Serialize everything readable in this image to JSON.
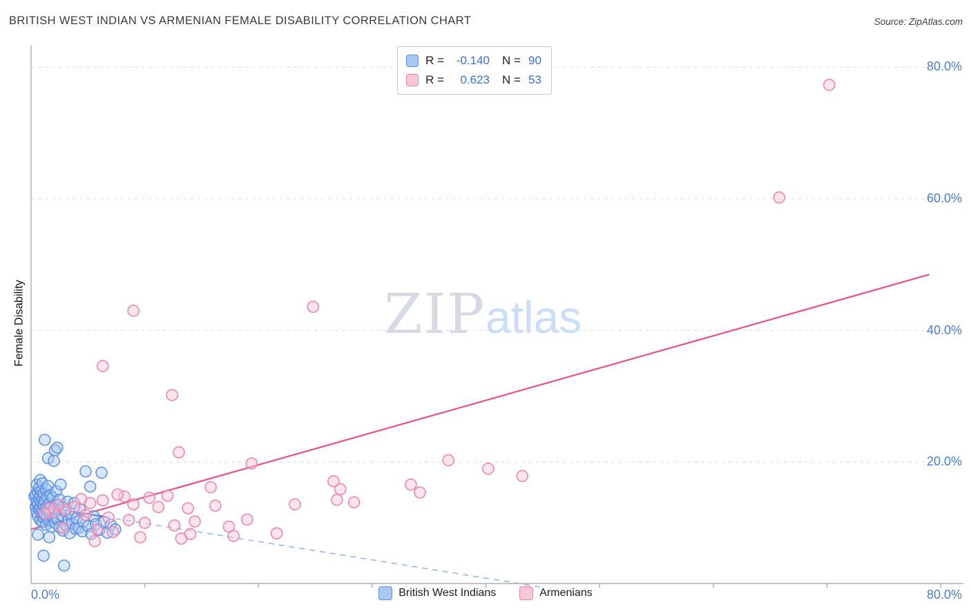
{
  "header": {
    "title": "BRITISH WEST INDIAN VS ARMENIAN FEMALE DISABILITY CORRELATION CHART",
    "source": "Source: ZipAtlas.com"
  },
  "legend_box": {
    "rows": [
      {
        "r_label": "R =",
        "r_value": "-0.140",
        "n_label": "N =",
        "n_value": "90"
      },
      {
        "r_label": "R =",
        "r_value": "0.623",
        "n_label": "N =",
        "n_value": "53"
      }
    ]
  },
  "axes": {
    "y_label": "Female Disability",
    "y_tick_labels": [
      "80.0%",
      "60.0%",
      "40.0%",
      "20.0%"
    ],
    "x_min_label": "0.0%",
    "x_max_label": "80.0%"
  },
  "watermark": {
    "part1": "ZIP",
    "part2": "atlas"
  },
  "bottom_legend": {
    "items": [
      {
        "label": "British West Indians"
      },
      {
        "label": "Armenians"
      }
    ]
  },
  "colors": {
    "axis_label_blue": "#4a7cd6",
    "legend_value_blue": "#3b6fd6",
    "title_gray": "#3a3a3a",
    "gridline_gray": "#dcdcdc",
    "watermark_gray": "#d6dae2",
    "watermark_blue": "#cadef8"
  },
  "chart_data": {
    "type": "scatter",
    "title": "BRITISH WEST INDIAN VS ARMENIAN FEMALE DISABILITY CORRELATION CHART",
    "xlabel": "",
    "ylabel": "Female Disability",
    "xlim": [
      0,
      82
    ],
    "ylim": [
      0,
      84
    ],
    "x_ticks": [
      10,
      20,
      30,
      40,
      50,
      60,
      70,
      80
    ],
    "y_gridlines": [
      20,
      40,
      60,
      80
    ],
    "grid": "dashed-horizontal",
    "legend_position": "top-center and bottom-center",
    "series": [
      {
        "name": "British West Indians",
        "R": -0.14,
        "N": 90,
        "fill": "#a6c8f2",
        "stroke": "#5b8ee2",
        "points": [
          [
            0.3,
            14.8
          ],
          [
            0.4,
            13.2
          ],
          [
            0.4,
            15.1
          ],
          [
            0.5,
            12.4
          ],
          [
            0.5,
            14.0
          ],
          [
            0.5,
            16.6
          ],
          [
            0.6,
            11.8
          ],
          [
            0.6,
            13.6
          ],
          [
            0.6,
            15.4
          ],
          [
            0.7,
            12.9
          ],
          [
            0.7,
            14.4
          ],
          [
            0.7,
            16.1
          ],
          [
            0.8,
            11.2
          ],
          [
            0.8,
            13.1
          ],
          [
            0.8,
            14.9
          ],
          [
            0.8,
            17.3
          ],
          [
            0.9,
            12.2
          ],
          [
            0.9,
            13.9
          ],
          [
            0.9,
            15.7
          ],
          [
            1.0,
            10.9
          ],
          [
            1.0,
            12.7
          ],
          [
            1.0,
            14.5
          ],
          [
            1.0,
            16.8
          ],
          [
            1.1,
            11.6
          ],
          [
            1.1,
            13.4
          ],
          [
            1.1,
            15.2
          ],
          [
            1.2,
            12.0
          ],
          [
            1.2,
            14.1
          ],
          [
            1.2,
            23.4
          ],
          [
            1.3,
            10.5
          ],
          [
            1.3,
            13.0
          ],
          [
            1.3,
            15.9
          ],
          [
            1.4,
            11.9
          ],
          [
            1.4,
            14.7
          ],
          [
            1.5,
            12.6
          ],
          [
            1.5,
            16.4
          ],
          [
            1.5,
            20.6
          ],
          [
            1.6,
            11.1
          ],
          [
            1.6,
            13.7
          ],
          [
            1.7,
            12.3
          ],
          [
            1.7,
            15.0
          ],
          [
            1.8,
            10.2
          ],
          [
            1.8,
            13.3
          ],
          [
            1.9,
            11.7
          ],
          [
            1.9,
            14.6
          ],
          [
            2.0,
            12.9
          ],
          [
            2.0,
            20.2
          ],
          [
            2.1,
            10.8
          ],
          [
            2.1,
            21.8
          ],
          [
            2.2,
            13.5
          ],
          [
            2.2,
            15.6
          ],
          [
            2.3,
            11.4
          ],
          [
            2.3,
            22.2
          ],
          [
            2.4,
            12.8
          ],
          [
            2.5,
            10.1
          ],
          [
            2.5,
            14.3
          ],
          [
            2.6,
            16.6
          ],
          [
            2.7,
            11.9
          ],
          [
            2.8,
            9.6
          ],
          [
            2.8,
            13.2
          ],
          [
            2.9,
            4.3
          ],
          [
            3.0,
            12.5
          ],
          [
            3.1,
            10.4
          ],
          [
            3.2,
            14.0
          ],
          [
            3.3,
            11.3
          ],
          [
            3.4,
            9.2
          ],
          [
            3.5,
            12.1
          ],
          [
            3.6,
            10.7
          ],
          [
            3.8,
            13.8
          ],
          [
            3.9,
            9.9
          ],
          [
            4.0,
            11.5
          ],
          [
            4.2,
            10.0
          ],
          [
            4.3,
            12.9
          ],
          [
            4.5,
            9.5
          ],
          [
            4.6,
            11.0
          ],
          [
            4.8,
            18.6
          ],
          [
            5.0,
            10.3
          ],
          [
            5.2,
            16.3
          ],
          [
            5.3,
            9.1
          ],
          [
            5.5,
            11.8
          ],
          [
            5.7,
            10.6
          ],
          [
            6.0,
            9.7
          ],
          [
            6.2,
            18.4
          ],
          [
            6.4,
            10.9
          ],
          [
            6.7,
            9.3
          ],
          [
            7.0,
            10.5
          ],
          [
            7.4,
            9.8
          ],
          [
            1.1,
            5.8
          ],
          [
            0.6,
            9.0
          ],
          [
            1.6,
            8.6
          ]
        ]
      },
      {
        "name": "Armenians",
        "R": 0.623,
        "N": 53,
        "fill": "#f9c6d8",
        "stroke": "#ee7fa9",
        "points": [
          [
            70.2,
            77.3
          ],
          [
            65.8,
            60.2
          ],
          [
            9.0,
            43.0
          ],
          [
            24.8,
            43.6
          ],
          [
            6.3,
            34.6
          ],
          [
            12.4,
            30.2
          ],
          [
            13.0,
            21.5
          ],
          [
            19.4,
            19.8
          ],
          [
            36.7,
            20.3
          ],
          [
            40.2,
            19.0
          ],
          [
            43.2,
            17.9
          ],
          [
            26.6,
            17.1
          ],
          [
            27.2,
            15.9
          ],
          [
            33.4,
            16.6
          ],
          [
            34.2,
            15.4
          ],
          [
            28.4,
            13.9
          ],
          [
            26.9,
            14.3
          ],
          [
            15.8,
            16.2
          ],
          [
            12.0,
            14.9
          ],
          [
            10.4,
            14.6
          ],
          [
            8.2,
            14.8
          ],
          [
            7.6,
            15.1
          ],
          [
            9.0,
            13.6
          ],
          [
            11.2,
            13.2
          ],
          [
            13.8,
            13.0
          ],
          [
            6.3,
            14.2
          ],
          [
            5.2,
            13.8
          ],
          [
            4.4,
            14.4
          ],
          [
            3.8,
            13.2
          ],
          [
            3.0,
            12.8
          ],
          [
            2.4,
            13.5
          ],
          [
            2.0,
            12.4
          ],
          [
            1.6,
            13.0
          ],
          [
            1.2,
            12.2
          ],
          [
            4.8,
            12.0
          ],
          [
            6.8,
            11.6
          ],
          [
            8.6,
            11.2
          ],
          [
            10.0,
            10.8
          ],
          [
            12.6,
            10.4
          ],
          [
            14.4,
            11.0
          ],
          [
            16.2,
            13.4
          ],
          [
            17.4,
            10.2
          ],
          [
            5.8,
            9.8
          ],
          [
            7.2,
            9.4
          ],
          [
            9.6,
            8.6
          ],
          [
            13.2,
            8.4
          ],
          [
            14.0,
            9.1
          ],
          [
            17.8,
            8.8
          ],
          [
            2.8,
            10.0
          ],
          [
            21.6,
            9.2
          ],
          [
            19.0,
            11.3
          ],
          [
            23.2,
            13.6
          ],
          [
            5.6,
            8.0
          ]
        ]
      }
    ],
    "trend_lines": [
      {
        "series": "British West Indians",
        "color": "#2e62c8",
        "dash_color": "#8ab4ec",
        "solid": {
          "x1": 0,
          "y1": 13.5,
          "x2": 6.5,
          "y2": 11.7
        },
        "dashed": {
          "x1": 6.5,
          "y1": 11.7,
          "x2": 45.0,
          "y2": 1.0
        }
      },
      {
        "series": "Armenians",
        "color": "#e8548e",
        "solid": {
          "x1": 0,
          "y1": 9.8,
          "x2": 79.0,
          "y2": 48.5
        }
      }
    ]
  }
}
